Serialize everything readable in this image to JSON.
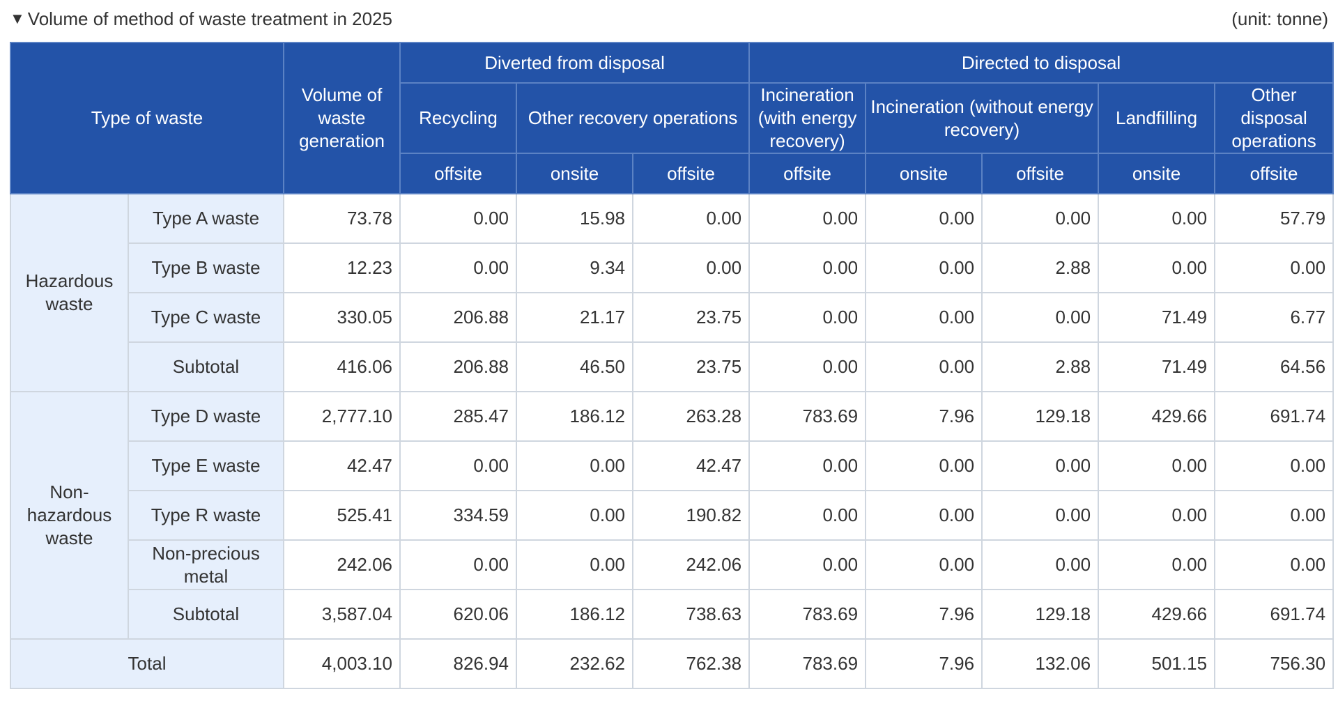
{
  "caption": {
    "marker": "▼",
    "title": "Volume of method of waste treatment in 2025",
    "unit": "(unit: tonne)"
  },
  "header": {
    "type_of_waste": "Type of waste",
    "volume_generation": "Volume of waste generation",
    "diverted": "Diverted from disposal",
    "directed": "Directed to disposal",
    "recycling": "Recycling",
    "other_recovery": "Other recovery operations",
    "incineration_with": "Incineration (with energy recovery)",
    "incineration_without": "Incineration (without energy recovery)",
    "landfilling": "Landfilling",
    "other_disposal": "Other disposal operations",
    "offsite": "offsite",
    "onsite": "onsite"
  },
  "groups": {
    "hazardous": "Hazardous waste",
    "non_hazardous": "Non-hazardous waste"
  },
  "rows": [
    {
      "label": "Type A waste",
      "values": [
        "73.78",
        "0.00",
        "15.98",
        "0.00",
        "0.00",
        "0.00",
        "0.00",
        "0.00",
        "57.79"
      ]
    },
    {
      "label": "Type B waste",
      "values": [
        "12.23",
        "0.00",
        "9.34",
        "0.00",
        "0.00",
        "0.00",
        "2.88",
        "0.00",
        "0.00"
      ]
    },
    {
      "label": "Type C waste",
      "values": [
        "330.05",
        "206.88",
        "21.17",
        "23.75",
        "0.00",
        "0.00",
        "0.00",
        "71.49",
        "6.77"
      ]
    },
    {
      "label": "Subtotal",
      "values": [
        "416.06",
        "206.88",
        "46.50",
        "23.75",
        "0.00",
        "0.00",
        "2.88",
        "71.49",
        "64.56"
      ]
    },
    {
      "label": "Type D waste",
      "values": [
        "2,777.10",
        "285.47",
        "186.12",
        "263.28",
        "783.69",
        "7.96",
        "129.18",
        "429.66",
        "691.74"
      ]
    },
    {
      "label": "Type E waste",
      "values": [
        "42.47",
        "0.00",
        "0.00",
        "42.47",
        "0.00",
        "0.00",
        "0.00",
        "0.00",
        "0.00"
      ]
    },
    {
      "label": "Type R waste",
      "values": [
        "525.41",
        "334.59",
        "0.00",
        "190.82",
        "0.00",
        "0.00",
        "0.00",
        "0.00",
        "0.00"
      ]
    },
    {
      "label": "Non-precious metal",
      "values": [
        "242.06",
        "0.00",
        "0.00",
        "242.06",
        "0.00",
        "0.00",
        "0.00",
        "0.00",
        "0.00"
      ]
    },
    {
      "label": "Subtotal",
      "values": [
        "3,587.04",
        "620.06",
        "186.12",
        "738.63",
        "783.69",
        "7.96",
        "129.18",
        "429.66",
        "691.74"
      ]
    }
  ],
  "total": {
    "label": "Total",
    "values": [
      "4,003.10",
      "826.94",
      "232.62",
      "762.38",
      "783.69",
      "7.96",
      "132.06",
      "501.15",
      "756.30"
    ]
  }
}
